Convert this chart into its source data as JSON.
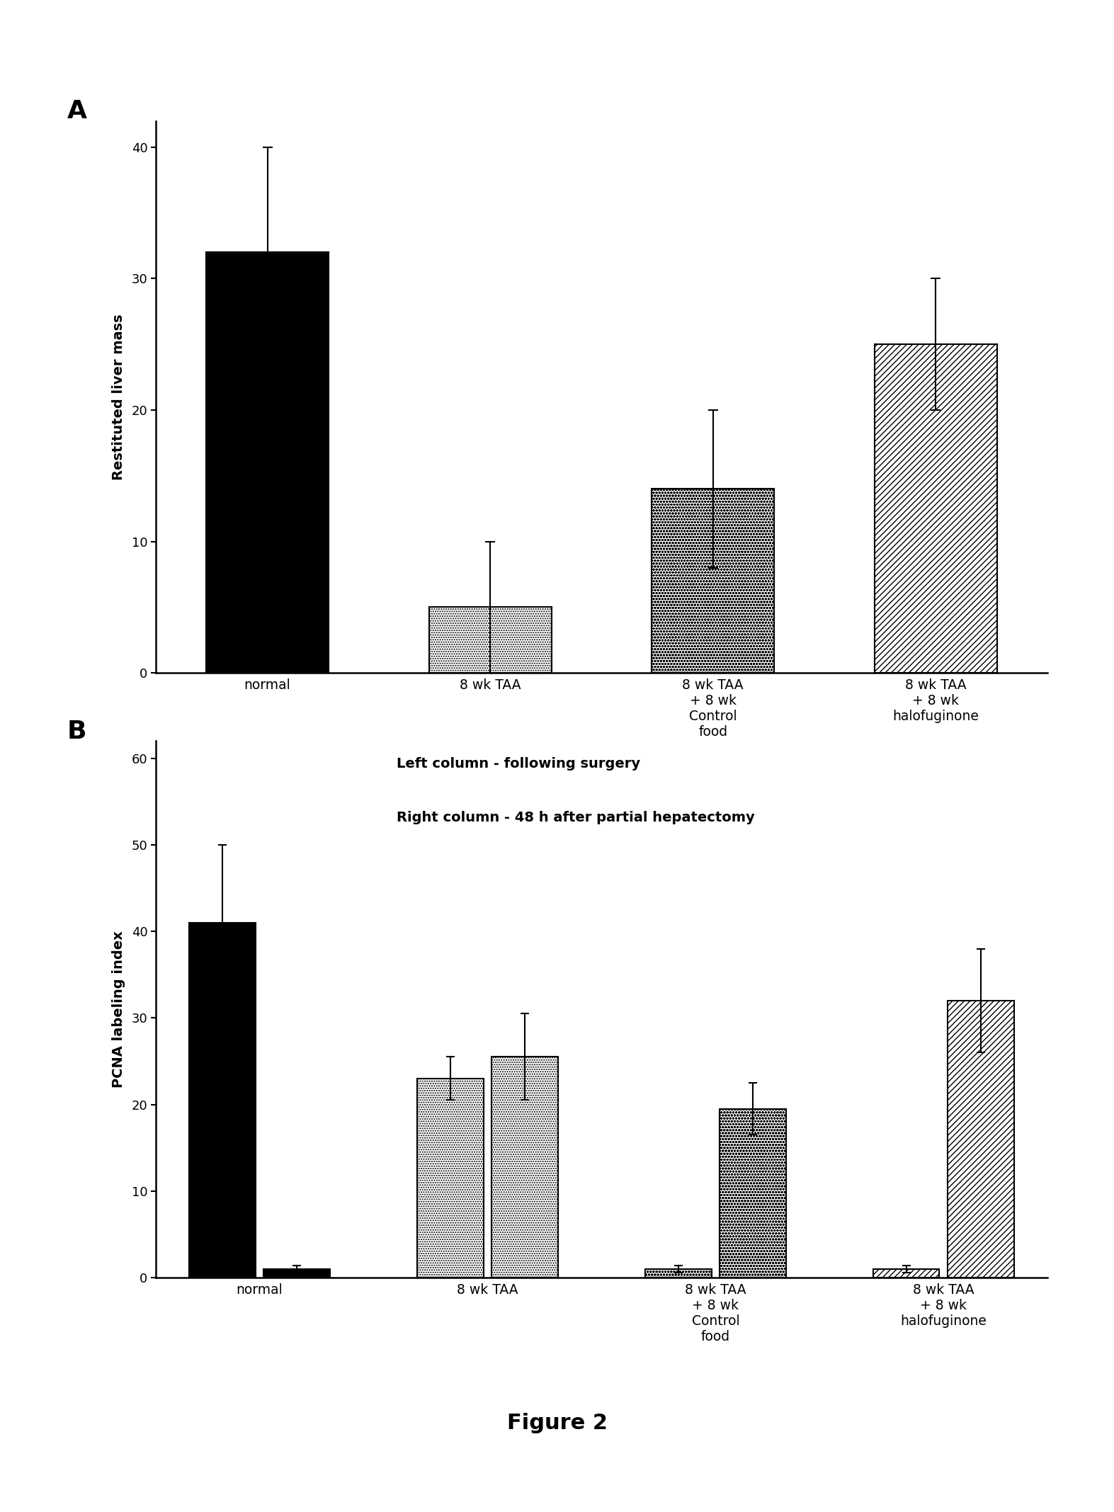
{
  "panel_A": {
    "ylabel": "Restituted liver mass",
    "ylim": [
      0,
      42
    ],
    "yticks": [
      0,
      10,
      20,
      30,
      40
    ],
    "bars": [
      {
        "value": 32,
        "err": 8,
        "hatch": null,
        "facecolor": "black",
        "edgecolor": "black"
      },
      {
        "value": 5,
        "err": 5,
        "hatch": ".....",
        "facecolor": "white",
        "edgecolor": "black"
      },
      {
        "value": 14,
        "err": 6,
        "hatch": "oooo",
        "facecolor": "white",
        "edgecolor": "black"
      },
      {
        "value": 25,
        "err": 5,
        "hatch": "////",
        "facecolor": "white",
        "edgecolor": "black"
      }
    ],
    "xticklabels": [
      "normal",
      "8 wk TAA",
      "8 wk TAA\n+ 8 wk\nControl\nfood",
      "8 wk TAA\n+ 8 wk\nhalofuginone"
    ]
  },
  "panel_B": {
    "ylabel": "PCNA labeling index",
    "ylim": [
      0,
      62
    ],
    "yticks": [
      0,
      10,
      20,
      30,
      40,
      50,
      60
    ],
    "annotation_line1": "Left column - following surgery",
    "annotation_line2": "Right column - 48 h after partial hepatectomy",
    "groups": [
      {
        "bars": [
          {
            "value": 41,
            "err": 9,
            "hatch": null,
            "facecolor": "black",
            "edgecolor": "black"
          },
          {
            "value": 1,
            "err": 0.4,
            "hatch": null,
            "facecolor": "black",
            "edgecolor": "black"
          }
        ]
      },
      {
        "bars": [
          {
            "value": 23,
            "err": 2.5,
            "hatch": ".....",
            "facecolor": "white",
            "edgecolor": "black"
          },
          {
            "value": 25.5,
            "err": 5,
            "hatch": ".....",
            "facecolor": "white",
            "edgecolor": "black"
          }
        ]
      },
      {
        "bars": [
          {
            "value": 1,
            "err": 0.4,
            "hatch": "oooo",
            "facecolor": "white",
            "edgecolor": "black"
          },
          {
            "value": 19.5,
            "err": 3,
            "hatch": "oooo",
            "facecolor": "white",
            "edgecolor": "black"
          }
        ]
      },
      {
        "bars": [
          {
            "value": 1,
            "err": 0.4,
            "hatch": "////",
            "facecolor": "white",
            "edgecolor": "black"
          },
          {
            "value": 32,
            "err": 6,
            "hatch": "////",
            "facecolor": "white",
            "edgecolor": "black"
          }
        ]
      }
    ],
    "xticklabels": [
      "normal",
      "8 wk TAA",
      "8 wk TAA\n+ 8 wk\nControl\nfood",
      "8 wk TAA\n+ 8 wk\nhalofuginone"
    ]
  },
  "figure_label": "Figure 2",
  "background_color": "#ffffff"
}
